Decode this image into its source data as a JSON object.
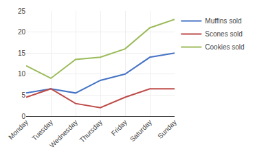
{
  "chart_data": {
    "type": "line",
    "categories": [
      "Monday",
      "Tuesday",
      "Wednesday",
      "Thursday",
      "Friday",
      "Saturday",
      "Sunday"
    ],
    "series": [
      {
        "name": "Muffins sold",
        "color": "#4472C4",
        "values": [
          5.5,
          6.5,
          5.5,
          8.5,
          10,
          14,
          15
        ]
      },
      {
        "name": "Scones sold",
        "color": "#BE4B48",
        "values": [
          4.5,
          6.5,
          3,
          2,
          4.5,
          6.5,
          6.5
        ]
      },
      {
        "name": "Cookies sold",
        "color": "#9BBB59",
        "values": [
          12,
          9,
          13.5,
          14,
          16,
          21,
          23
        ]
      }
    ],
    "ylim": [
      0,
      25
    ],
    "yticks": [
      0,
      5,
      10,
      15,
      20,
      25
    ],
    "grid": true,
    "legend": "right"
  }
}
